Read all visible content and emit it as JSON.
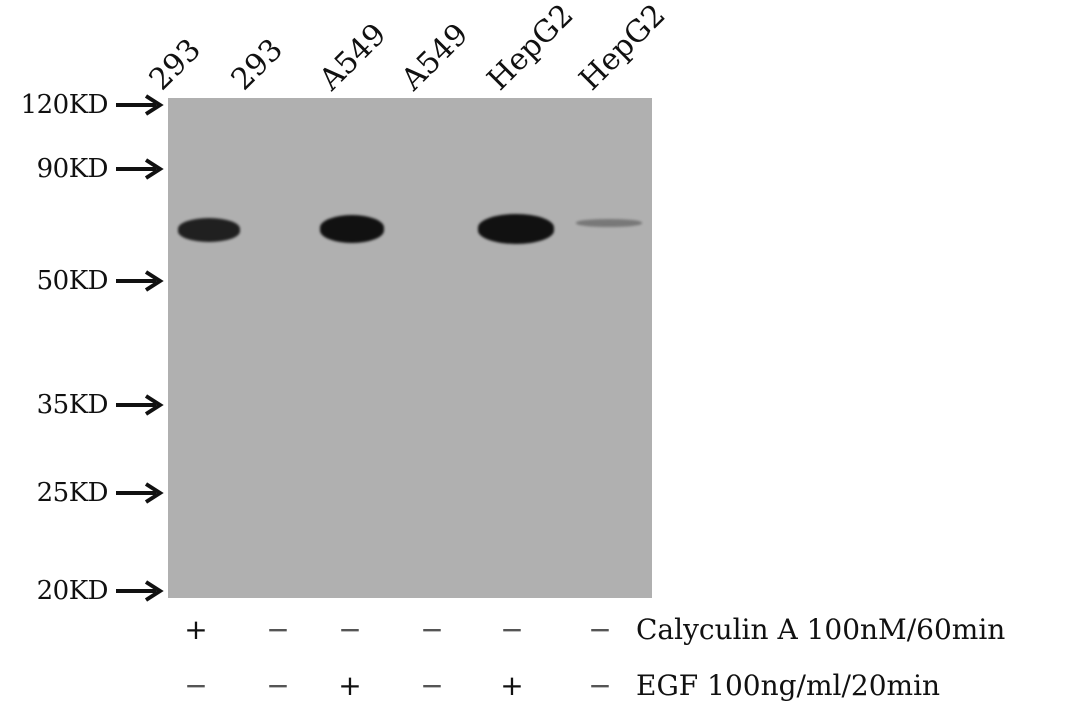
{
  "lanes": [
    {
      "label": "293",
      "calyculin": "+",
      "egf": "−",
      "band_intensity": 0.9
    },
    {
      "label": "293",
      "calyculin": "−",
      "egf": "−",
      "band_intensity": 0.0
    },
    {
      "label": "A549",
      "calyculin": "−",
      "egf": "+",
      "band_intensity": 1.0
    },
    {
      "label": "A549",
      "calyculin": "−",
      "egf": "−",
      "band_intensity": 0.0
    },
    {
      "label": "HepG2",
      "calyculin": "−",
      "egf": "+",
      "band_intensity": 1.0
    },
    {
      "label": "HepG2",
      "calyculin": "−",
      "egf": "−",
      "band_intensity": 0.25
    }
  ],
  "markers": [
    {
      "label": "120KD"
    },
    {
      "label": "90KD"
    },
    {
      "label": "50KD"
    },
    {
      "label": "35KD"
    },
    {
      "label": "25KD"
    },
    {
      "label": "20KD"
    }
  ],
  "treatments": {
    "calyculin_label": "Calyculin A 100nM/60min",
    "egf_label": "EGF 100ng/ml/20min"
  },
  "colors": {
    "membrane": "#b0b0b0",
    "band": "#111111",
    "text": "#111111"
  }
}
